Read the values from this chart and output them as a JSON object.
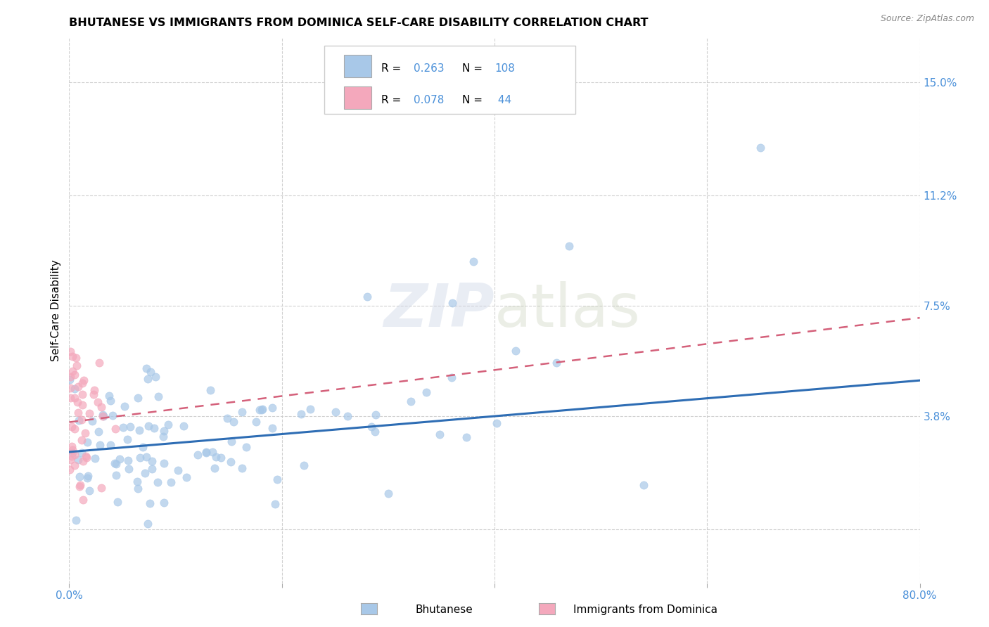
{
  "title": "BHUTANESE VS IMMIGRANTS FROM DOMINICA SELF-CARE DISABILITY CORRELATION CHART",
  "source": "Source: ZipAtlas.com",
  "ylabel": "Self-Care Disability",
  "xlim": [
    0.0,
    0.8
  ],
  "ylim": [
    -0.018,
    0.165
  ],
  "ytick_vals": [
    0.0,
    0.038,
    0.075,
    0.112,
    0.15
  ],
  "ytick_labels": [
    "",
    "3.8%",
    "7.5%",
    "11.2%",
    "15.0%"
  ],
  "watermark": "ZIPatlas",
  "blue_color": "#a8c8e8",
  "pink_color": "#f4a8bc",
  "blue_line_color": "#2e6db4",
  "pink_line_color": "#d4607a",
  "legend_R1": "0.263",
  "legend_N1": "108",
  "legend_R2": "0.078",
  "legend_N2": "44",
  "legend_label1": "Bhutanese",
  "legend_label2": "Immigrants from Dominica",
  "blue_trend_start_y": 0.026,
  "blue_trend_end_y": 0.05,
  "pink_trend_start_y": 0.036,
  "pink_trend_end_y": 0.071,
  "grid_color": "#cccccc",
  "axis_color": "#4a90d9",
  "background_color": "#ffffff",
  "legend_text_color": "#4a90d9",
  "legend_label_color": "#111111"
}
